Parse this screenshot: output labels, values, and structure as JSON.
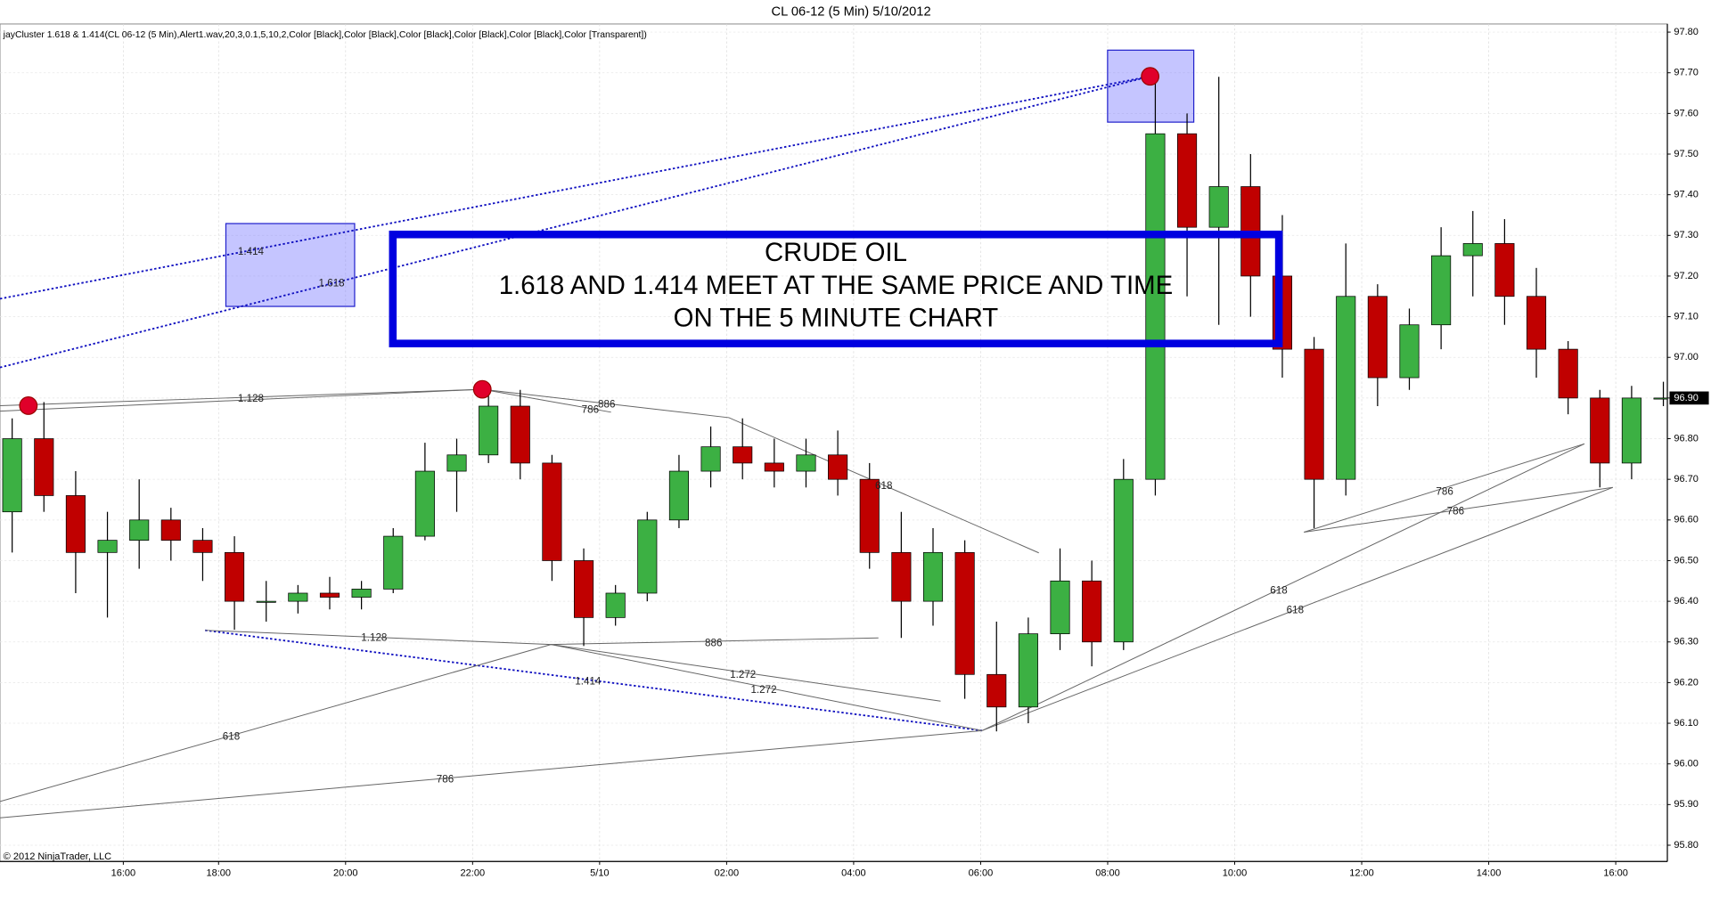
{
  "chart_data": {
    "type": "candlestick",
    "title": "CL 06-12 (5 Min)  5/10/2012",
    "indicator_label": "jayCluster 1.618 & 1.414(CL 06-12 (5 Min),Alert1.wav,20,3,0.1,5,10,2,Color [Black],Color [Black],Color [Black],Color [Black],Color [Black],Color [Transparent])",
    "copyright": "© 2012 NinjaTrader, LLC",
    "box_text": [
      "CRUDE OIL",
      "1.618 AND 1.414 MEET AT THE SAME PRICE AND TIME",
      "ON THE 5 MINUTE CHART"
    ],
    "fib_labels": [
      "1.414",
      "1.618",
      "1.128",
      "786",
      "886",
      "618",
      "1.128",
      "886",
      "1.272",
      "1.272",
      "1.414",
      "618",
      "786",
      "786",
      "786",
      "618",
      "618"
    ],
    "last_value_label": "96.90",
    "up_color": "#3cb043",
    "down_color": "#c00000",
    "grid": true,
    "x": [
      -10,
      -9.5,
      -9,
      -8.5,
      -8,
      -7.5,
      -7,
      -6,
      -5.5,
      -5,
      -4.5,
      -4,
      -3.5,
      -3,
      -2.5,
      -2,
      -1.5,
      -1,
      -0.5,
      0,
      0.5,
      1,
      1.5,
      2,
      2.5,
      3,
      3.5,
      4,
      4.5,
      5,
      5.5,
      6,
      6.5,
      7,
      7.5,
      8,
      8.5,
      9,
      9.5,
      10,
      10.5,
      11,
      11.5,
      12,
      12.5,
      13,
      13.5,
      14,
      14.5,
      15,
      15.5,
      16,
      16.5
    ],
    "open": [
      96.62,
      96.8,
      96.66,
      96.52,
      96.55,
      96.6,
      96.55,
      96.52,
      96.4,
      96.4,
      96.42,
      96.41,
      96.43,
      96.56,
      96.72,
      96.76,
      96.88,
      96.74,
      96.5,
      96.36,
      96.42,
      96.6,
      96.72,
      96.78,
      96.74,
      96.72,
      96.76,
      96.7,
      96.52,
      96.4,
      96.52,
      96.22,
      96.14,
      96.32,
      96.45,
      96.3,
      96.7,
      97.55,
      97.32,
      97.42,
      97.2,
      97.02,
      96.7,
      97.15,
      96.95,
      97.08,
      97.25,
      97.28,
      97.15,
      97.02,
      96.9,
      96.74,
      96.9
    ],
    "high": [
      96.85,
      96.89,
      96.72,
      96.62,
      96.7,
      96.63,
      96.58,
      96.56,
      96.45,
      96.44,
      96.46,
      96.45,
      96.58,
      96.79,
      96.8,
      96.92,
      96.92,
      96.76,
      96.53,
      96.44,
      96.62,
      96.76,
      96.83,
      96.85,
      96.8,
      96.8,
      96.82,
      96.74,
      96.62,
      96.58,
      96.55,
      96.35,
      96.36,
      96.53,
      96.5,
      96.75,
      97.7,
      97.6,
      97.69,
      97.5,
      97.35,
      97.05,
      97.28,
      97.18,
      97.12,
      97.32,
      97.36,
      97.34,
      97.22,
      97.04,
      96.92,
      96.93,
      96.94
    ],
    "low": [
      96.52,
      96.62,
      96.42,
      96.36,
      96.48,
      96.5,
      96.45,
      96.33,
      96.35,
      96.37,
      96.38,
      96.38,
      96.42,
      96.55,
      96.62,
      96.74,
      96.7,
      96.45,
      96.29,
      96.34,
      96.4,
      96.58,
      96.68,
      96.7,
      96.68,
      96.68,
      96.66,
      96.48,
      96.31,
      96.34,
      96.16,
      96.08,
      96.1,
      96.28,
      96.24,
      96.28,
      96.66,
      97.15,
      97.08,
      97.1,
      96.95,
      96.58,
      96.66,
      96.88,
      96.92,
      97.02,
      97.15,
      97.08,
      96.95,
      96.86,
      96.68,
      96.7,
      96.88
    ],
    "close": [
      96.8,
      96.66,
      96.52,
      96.55,
      96.6,
      96.55,
      96.52,
      96.4,
      96.4,
      96.42,
      96.41,
      96.43,
      96.56,
      96.72,
      96.76,
      96.88,
      96.74,
      96.5,
      96.36,
      96.42,
      96.6,
      96.72,
      96.78,
      96.74,
      96.72,
      96.76,
      96.7,
      96.52,
      96.4,
      96.52,
      96.22,
      96.14,
      96.32,
      96.45,
      96.3,
      96.7,
      97.55,
      97.32,
      97.42,
      97.2,
      97.02,
      96.7,
      97.15,
      96.95,
      97.08,
      97.25,
      97.28,
      97.15,
      97.02,
      96.9,
      96.74,
      96.9,
      96.9
    ],
    "xticks": [
      {
        "value": -8,
        "label": "16:00"
      },
      {
        "value": -6,
        "label": "18:00"
      },
      {
        "value": -4,
        "label": "20:00"
      },
      {
        "value": -2,
        "label": "22:00"
      },
      {
        "value": 0,
        "label": "5/10"
      },
      {
        "value": 2,
        "label": "02:00"
      },
      {
        "value": 4,
        "label": "04:00"
      },
      {
        "value": 6,
        "label": "06:00"
      },
      {
        "value": 8,
        "label": "08:00"
      },
      {
        "value": 10,
        "label": "10:00"
      },
      {
        "value": 12,
        "label": "12:00"
      },
      {
        "value": 14,
        "label": "14:00"
      },
      {
        "value": 16,
        "label": "16:00"
      }
    ],
    "ylim": [
      95.76,
      97.82
    ],
    "yticks": [
      {
        "value": 95.8,
        "label": "95.80"
      },
      {
        "value": 95.9,
        "label": "95.90"
      },
      {
        "value": 96.0,
        "label": "96.00"
      },
      {
        "value": 96.1,
        "label": "96.10"
      },
      {
        "value": 96.2,
        "label": "96.20"
      },
      {
        "value": 96.3,
        "label": "96.30"
      },
      {
        "value": 96.4,
        "label": "96.40"
      },
      {
        "value": 96.5,
        "label": "96.50"
      },
      {
        "value": 96.6,
        "label": "96.60"
      },
      {
        "value": 96.7,
        "label": "96.70"
      },
      {
        "value": 96.8,
        "label": "96.80"
      },
      {
        "value": 96.9,
        "label": "96.90"
      },
      {
        "value": 97.0,
        "label": "97.00"
      },
      {
        "value": 97.1,
        "label": "97.10"
      },
      {
        "value": 97.2,
        "label": "97.20"
      },
      {
        "value": 97.3,
        "label": "97.30"
      },
      {
        "value": 97.4,
        "label": "97.40"
      },
      {
        "value": 97.5,
        "label": "97.50"
      },
      {
        "value": 97.6,
        "label": "97.60"
      },
      {
        "value": 97.7,
        "label": "97.70"
      },
      {
        "value": 97.8,
        "label": "97.80"
      }
    ]
  }
}
